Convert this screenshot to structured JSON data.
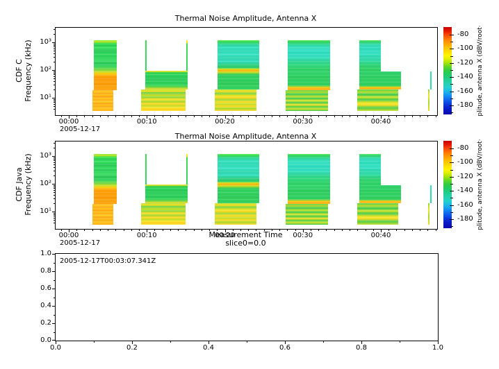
{
  "app": {
    "background": "#ffffff",
    "foreground": "#000000"
  },
  "chart_data": [
    {
      "type": "heatmap",
      "title": "Thermal Noise Amplitude, Antenna X",
      "renderer": "CDF C",
      "ylabel": "Frequency (kHz)",
      "y_axis": {
        "scale": "log",
        "unit": "kHz",
        "tick_labels": [
          "10³",
          "10²",
          "10¹"
        ],
        "tick_exponents": [
          3,
          2,
          1
        ],
        "range_exp": [
          0.525,
          3.525
        ]
      },
      "x_axis": {
        "start_date": "2005-12-17",
        "tick_labels": [
          "00:00",
          "00:10",
          "00:20",
          "00:30",
          "00:40"
        ],
        "tick_minutes": [
          0,
          10,
          20,
          30,
          40
        ],
        "range_minutes": [
          -1.7,
          47.2
        ],
        "minor_step_minutes": 1
      },
      "z_axis": {
        "label_visible": "plitude, antenna X (dBV/root·",
        "tick_labels": [
          "-80",
          "-100",
          "-120",
          "-140",
          "-160",
          "-180"
        ],
        "tick_values": [
          -80,
          -100,
          -120,
          -140,
          -160,
          -180
        ],
        "minor_step": 10,
        "range_approx": [
          -69,
          -194
        ]
      },
      "segments_key": "spectrogram_segments"
    },
    {
      "type": "heatmap",
      "title": "Thermal Noise Amplitude, Antenna X",
      "renderer": "CDF Java",
      "ylabel": "Frequency (kHz)",
      "xlabel": "Measurement Time",
      "slice_annotation": "slice0=0.0",
      "y_axis": {
        "scale": "log",
        "unit": "kHz",
        "tick_labels": [
          "10³",
          "10²",
          "10¹"
        ],
        "tick_exponents": [
          3,
          2,
          1
        ],
        "range_exp": [
          0.525,
          3.525
        ]
      },
      "x_axis": {
        "start_date": "2005-12-17",
        "tick_labels": [
          "00:00",
          "00:10",
          "00:20",
          "00:30",
          "00:40"
        ],
        "tick_minutes": [
          0,
          10,
          20,
          30,
          40
        ],
        "range_minutes": [
          -1.7,
          47.2
        ],
        "minor_step_minutes": 1
      },
      "z_axis": {
        "label_visible": "plitude, antenna X (dBV/root·",
        "tick_labels": [
          "-80",
          "-100",
          "-120",
          "-140",
          "-160",
          "-180"
        ],
        "tick_values": [
          -80,
          -100,
          -120,
          -140,
          -160,
          -180
        ],
        "minor_step": 10,
        "range_approx": [
          -69,
          -194
        ]
      },
      "segments_key": "spectrogram_segments"
    },
    {
      "type": "line",
      "series": [],
      "annotation": "2005-12-17T00:03:07.341Z",
      "x_axis": {
        "tick_labels": [
          "0.0",
          "0.2",
          "0.4",
          "0.6",
          "0.8",
          "1.0"
        ],
        "tick_values": [
          0,
          0.2,
          0.4,
          0.6,
          0.8,
          1.0
        ],
        "range": [
          0,
          1
        ],
        "minor_step": 0.1
      },
      "y_axis": {
        "tick_labels": [
          "1.0",
          "0.8",
          "0.6",
          "0.4",
          "0.2",
          "0.0"
        ],
        "tick_values": [
          1.0,
          0.8,
          0.6,
          0.4,
          0.2,
          0
        ],
        "range": [
          0,
          1
        ],
        "minor_step": 0.1
      }
    }
  ],
  "spectrogram_segments": [
    {
      "t0": 3.21,
      "t1": 6.15,
      "f_hi": 1190,
      "f_lo": 18.8,
      "palette": "b1u",
      "desc": "green above ~90 kHz, strong orange 20-90 kHz, ~-130 to -95 dB"
    },
    {
      "t0": 3.03,
      "t1": 5.7,
      "f_hi": 18.8,
      "f_lo": 3.35,
      "palette": "b1l",
      "desc": "orange/yellow striped low band ~-100 dB"
    },
    {
      "t0": 9.8,
      "t1": 9.98,
      "f_hi": 1190,
      "f_lo": 94,
      "palette": "sliver_green",
      "desc": "thin green edge line"
    },
    {
      "t0": 15.06,
      "t1": 15.23,
      "f_hi": 1190,
      "f_lo": 94,
      "palette": "sliver_green2",
      "desc": "thin green edge line, yellow tip"
    },
    {
      "t0": 9.8,
      "t1": 15.23,
      "f_hi": 94,
      "f_lo": 20,
      "palette": "b2m",
      "desc": "green band ~-130 dB"
    },
    {
      "t0": 9.26,
      "t1": 14.97,
      "f_hi": 20,
      "f_lo": 3.35,
      "palette": "b2l",
      "desc": "yellow-green stripes ~-115 dB"
    },
    {
      "t0": 19.06,
      "t1": 24.41,
      "f_hi": 1190,
      "f_lo": 20,
      "palette": "b3u",
      "desc": "cyan/green, yellow line near 90 kHz"
    },
    {
      "t0": 18.71,
      "t1": 24.05,
      "f_hi": 20,
      "f_lo": 3.35,
      "palette": "b3l",
      "desc": "yellow-green stripes"
    },
    {
      "t0": 28.06,
      "t1": 33.5,
      "f_hi": 1190,
      "f_lo": 18.8,
      "palette": "b4u",
      "desc": "cyan/green, yellow line at 20 kHz"
    },
    {
      "t0": 27.8,
      "t1": 33.23,
      "f_hi": 18.8,
      "f_lo": 3.35,
      "palette": "b4l",
      "desc": "green/yellow stripes"
    },
    {
      "t0": 37.24,
      "t1": 40.0,
      "f_hi": 1190,
      "f_lo": 89,
      "palette": "b5u",
      "desc": "cyan/green upper block"
    },
    {
      "t0": 37.24,
      "t1": 42.58,
      "f_hi": 89,
      "f_lo": 20,
      "palette": "b5m",
      "desc": "green mid block, yellow line at 20 kHz"
    },
    {
      "t0": 36.97,
      "t1": 42.23,
      "f_hi": 20,
      "f_lo": 3.35,
      "palette": "b5l",
      "desc": "green/yellow stripes"
    },
    {
      "t0": 46.33,
      "t1": 46.5,
      "f_hi": 89,
      "f_lo": 20,
      "palette": "sliver_cyan",
      "desc": "thin cyan line"
    },
    {
      "t0": 46.06,
      "t1": 46.24,
      "f_hi": 20,
      "f_lo": 3.35,
      "palette": "sliver_yg",
      "desc": "thin yellow-green line"
    }
  ],
  "palettes": {
    "colorbar": [
      [
        0,
        "#c80000"
      ],
      [
        5,
        "#e51e00"
      ],
      [
        9,
        "#ff4c00"
      ],
      [
        14,
        "#ff7c00"
      ],
      [
        19,
        "#ffa300"
      ],
      [
        24,
        "#ffc400"
      ],
      [
        29,
        "#ffe200"
      ],
      [
        33,
        "#fef600"
      ],
      [
        37,
        "#d8ee00"
      ],
      [
        41,
        "#a6e408"
      ],
      [
        45,
        "#63d722"
      ],
      [
        50,
        "#2ecc44"
      ],
      [
        55,
        "#1fca67"
      ],
      [
        60,
        "#21cd90"
      ],
      [
        65,
        "#26d1b4"
      ],
      [
        69,
        "#25d0cc"
      ],
      [
        73,
        "#1dbce4"
      ],
      [
        78,
        "#1694f2"
      ],
      [
        83,
        "#1168ee"
      ],
      [
        88,
        "#0c3ede"
      ],
      [
        93,
        "#091cc8"
      ],
      [
        100,
        "#0a0aae"
      ]
    ],
    "b1u": [
      [
        0,
        "#7be52e"
      ],
      [
        3,
        "#c9e824"
      ],
      [
        6,
        "#3fe34b"
      ],
      [
        10,
        "#2ad153"
      ],
      [
        16,
        "#3ce463"
      ],
      [
        22,
        "#28c654"
      ],
      [
        28,
        "#35dc60"
      ],
      [
        34,
        "#2bd058"
      ],
      [
        40,
        "#43e16a"
      ],
      [
        46,
        "#2bc858"
      ],
      [
        52,
        "#38d862"
      ],
      [
        58,
        "#6fd94a"
      ],
      [
        63,
        "#c2e02c"
      ],
      [
        67,
        "#ffd013"
      ],
      [
        71,
        "#ffaa0a"
      ],
      [
        76,
        "#ff9b08"
      ],
      [
        82,
        "#ffa30d"
      ],
      [
        88,
        "#fb9a07"
      ],
      [
        94,
        "#ffa912"
      ],
      [
        100,
        "#ff9d0a"
      ]
    ],
    "b1l": [
      [
        0,
        "#ffaf1a"
      ],
      [
        8,
        "#ffd026"
      ],
      [
        16,
        "#ffa312"
      ],
      [
        24,
        "#ffc81f"
      ],
      [
        32,
        "#ff9f0e"
      ],
      [
        40,
        "#ffc922"
      ],
      [
        48,
        "#ffab15"
      ],
      [
        56,
        "#ffd42a"
      ],
      [
        64,
        "#ffa511"
      ],
      [
        72,
        "#ffc11d"
      ],
      [
        80,
        "#ffaf18"
      ],
      [
        88,
        "#ffc823"
      ],
      [
        100,
        "#ffb119"
      ]
    ],
    "sliver_green": [
      [
        0,
        "#3fdc52"
      ],
      [
        100,
        "#35d467"
      ]
    ],
    "sliver_green2": [
      [
        0,
        "#ffe22a"
      ],
      [
        8,
        "#ffe22a"
      ],
      [
        12,
        "#3fdc52"
      ],
      [
        100,
        "#35d467"
      ]
    ],
    "b2m": [
      [
        0,
        "#ffdf1e"
      ],
      [
        5,
        "#c8e42a"
      ],
      [
        10,
        "#35cf55"
      ],
      [
        22,
        "#2fd75f"
      ],
      [
        36,
        "#29c957"
      ],
      [
        50,
        "#33d362"
      ],
      [
        64,
        "#2bcc58"
      ],
      [
        78,
        "#37d55e"
      ],
      [
        90,
        "#84d83e"
      ],
      [
        100,
        "#ffd81f"
      ]
    ],
    "b2l": [
      [
        0,
        "#a8dc32"
      ],
      [
        8,
        "#ffe524"
      ],
      [
        16,
        "#63cf46"
      ],
      [
        26,
        "#cfe42f"
      ],
      [
        36,
        "#8ad83f"
      ],
      [
        46,
        "#ffe028"
      ],
      [
        56,
        "#a5da36"
      ],
      [
        66,
        "#ffd922"
      ],
      [
        76,
        "#c6df2d"
      ],
      [
        86,
        "#ffe42c"
      ],
      [
        93,
        "#ffd01e"
      ],
      [
        100,
        "#ffe230"
      ]
    ],
    "b3u": [
      [
        0,
        "#52e846"
      ],
      [
        4,
        "#35dc63"
      ],
      [
        9,
        "#31d89e"
      ],
      [
        15,
        "#38e2c2"
      ],
      [
        22,
        "#2ed9b2"
      ],
      [
        29,
        "#3ce4c8"
      ],
      [
        36,
        "#2fd8ae"
      ],
      [
        43,
        "#35dfc0"
      ],
      [
        50,
        "#2fd184"
      ],
      [
        56,
        "#31cf66"
      ],
      [
        59,
        "#e4de1d"
      ],
      [
        62,
        "#ffaf0e"
      ],
      [
        65,
        "#c9e026"
      ],
      [
        70,
        "#2fcc5a"
      ],
      [
        78,
        "#34d464"
      ],
      [
        86,
        "#2cca58"
      ],
      [
        94,
        "#36d260"
      ],
      [
        100,
        "#30cf5e"
      ]
    ],
    "b3l": [
      [
        0,
        "#b4dd2f"
      ],
      [
        9,
        "#ffe226"
      ],
      [
        18,
        "#74d243"
      ],
      [
        28,
        "#e4e629"
      ],
      [
        38,
        "#ffda20"
      ],
      [
        48,
        "#9cd939"
      ],
      [
        58,
        "#ffe02a"
      ],
      [
        68,
        "#c0df2e"
      ],
      [
        78,
        "#ffdc24"
      ],
      [
        88,
        "#aadc34"
      ],
      [
        100,
        "#ffd826"
      ]
    ],
    "b4u": [
      [
        0,
        "#48e24e"
      ],
      [
        5,
        "#31d56e"
      ],
      [
        11,
        "#33dcae"
      ],
      [
        18,
        "#39e3c6"
      ],
      [
        26,
        "#2edbbc"
      ],
      [
        34,
        "#36e0c2"
      ],
      [
        42,
        "#30d698"
      ],
      [
        50,
        "#33d97e"
      ],
      [
        58,
        "#2fd168"
      ],
      [
        66,
        "#35d56e"
      ],
      [
        74,
        "#2ecd5e"
      ],
      [
        82,
        "#33d164"
      ],
      [
        90,
        "#2fcf60"
      ],
      [
        95,
        "#ffd319"
      ],
      [
        98,
        "#ff9e0a"
      ],
      [
        100,
        "#ffc517"
      ]
    ],
    "b4l": [
      [
        0,
        "#55cf4a"
      ],
      [
        10,
        "#b8df33"
      ],
      [
        20,
        "#34ca58"
      ],
      [
        30,
        "#cde42e"
      ],
      [
        40,
        "#3ecd53"
      ],
      [
        50,
        "#e7e729"
      ],
      [
        60,
        "#45cf50"
      ],
      [
        70,
        "#ffe024"
      ],
      [
        80,
        "#4ed14d"
      ],
      [
        90,
        "#d8e32c"
      ],
      [
        100,
        "#3ecb52"
      ]
    ],
    "b5u": [
      [
        0,
        "#44e152"
      ],
      [
        8,
        "#32d786"
      ],
      [
        18,
        "#35dfc0"
      ],
      [
        30,
        "#2edcba"
      ],
      [
        42,
        "#38e2c6"
      ],
      [
        54,
        "#30d9b0"
      ],
      [
        66,
        "#33dca6"
      ],
      [
        78,
        "#30d478"
      ],
      [
        90,
        "#32d46a"
      ],
      [
        100,
        "#2fd164"
      ]
    ],
    "b5m": [
      [
        0,
        "#30d46c"
      ],
      [
        20,
        "#31d068"
      ],
      [
        40,
        "#2ecf60"
      ],
      [
        60,
        "#33d264"
      ],
      [
        80,
        "#2ecc5a"
      ],
      [
        88,
        "#ffd81c"
      ],
      [
        94,
        "#ffa70d"
      ],
      [
        100,
        "#ffd01a"
      ]
    ],
    "b5l": [
      [
        0,
        "#49cf4d"
      ],
      [
        12,
        "#bfe031"
      ],
      [
        24,
        "#37cb55"
      ],
      [
        36,
        "#d8e42c"
      ],
      [
        48,
        "#41cd50"
      ],
      [
        60,
        "#e6e62b"
      ],
      [
        72,
        "#ffdf26"
      ],
      [
        84,
        "#52d04b"
      ],
      [
        100,
        "#c8e02e"
      ]
    ],
    "sliver_cyan": [
      [
        0,
        "#35dfc0"
      ],
      [
        100,
        "#30d7a8"
      ]
    ],
    "sliver_yg": [
      [
        0,
        "#8ad83e"
      ],
      [
        30,
        "#ffe026"
      ],
      [
        60,
        "#a0da36"
      ],
      [
        100,
        "#ffd822"
      ]
    ]
  }
}
